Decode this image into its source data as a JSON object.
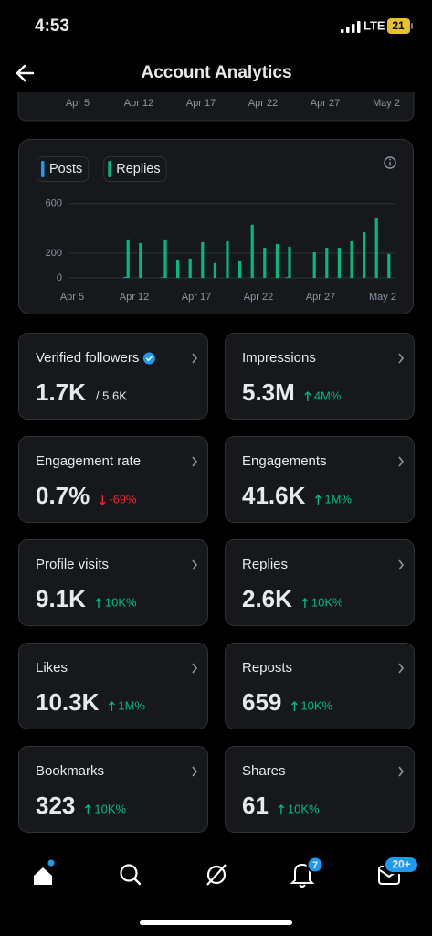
{
  "status_bar": {
    "time": "4:53",
    "network": "LTE",
    "battery": "21"
  },
  "header": {
    "title": "Account Analytics"
  },
  "previous_chart": {
    "x_labels": [
      "Apr 5",
      "Apr 12",
      "Apr 17",
      "Apr 22",
      "Apr 27",
      "May 2"
    ]
  },
  "chart_data": {
    "type": "bar",
    "categories": [
      "Apr 5",
      null,
      null,
      null,
      null,
      "Apr 12",
      null,
      null,
      null,
      null,
      "Apr 17",
      null,
      null,
      null,
      null,
      "Apr 22",
      null,
      null,
      null,
      null,
      "Apr 27",
      null,
      null,
      null,
      null,
      "May 2",
      null
    ],
    "series": [
      {
        "name": "Posts",
        "color": "#1d9bf0",
        "values": [
          0,
          0,
          0,
          0,
          8,
          0,
          0,
          5,
          0,
          0,
          0,
          0,
          0,
          0,
          0,
          0,
          0,
          5,
          0,
          0,
          0,
          0,
          0,
          0,
          0,
          0,
          0
        ]
      },
      {
        "name": "Replies",
        "color": "#00ba7c",
        "values": [
          0,
          0,
          0,
          0,
          304,
          281,
          0,
          304,
          148,
          156,
          289,
          119,
          296,
          133,
          430,
          244,
          274,
          252,
          0,
          207,
          244,
          244,
          296,
          370,
          481,
          193,
          0
        ]
      }
    ],
    "ylim": [
      0,
      650
    ],
    "yticks": [
      0,
      200,
      600
    ],
    "grid": true
  },
  "cards": [
    {
      "title": "Verified followers",
      "value": "1.7K",
      "extra": "/ 5.6K",
      "verified": true
    },
    {
      "title": "Impressions",
      "value": "5.3M",
      "delta": "4M%",
      "trend": "up"
    },
    {
      "title": "Engagement rate",
      "value": "0.7%",
      "delta": "-69%",
      "trend": "down"
    },
    {
      "title": "Engagements",
      "value": "41.6K",
      "delta": "1M%",
      "trend": "up"
    },
    {
      "title": "Profile visits",
      "value": "9.1K",
      "delta": "10K%",
      "trend": "up"
    },
    {
      "title": "Replies",
      "value": "2.6K",
      "delta": "10K%",
      "trend": "up"
    },
    {
      "title": "Likes",
      "value": "10.3K",
      "delta": "1M%",
      "trend": "up"
    },
    {
      "title": "Reposts",
      "value": "659",
      "delta": "10K%",
      "trend": "up"
    },
    {
      "title": "Bookmarks",
      "value": "323",
      "delta": "10K%",
      "trend": "up"
    },
    {
      "title": "Shares",
      "value": "61",
      "delta": "10K%",
      "trend": "up"
    }
  ],
  "nav": {
    "notifications_badge": "7",
    "messages_badge": "20+"
  }
}
